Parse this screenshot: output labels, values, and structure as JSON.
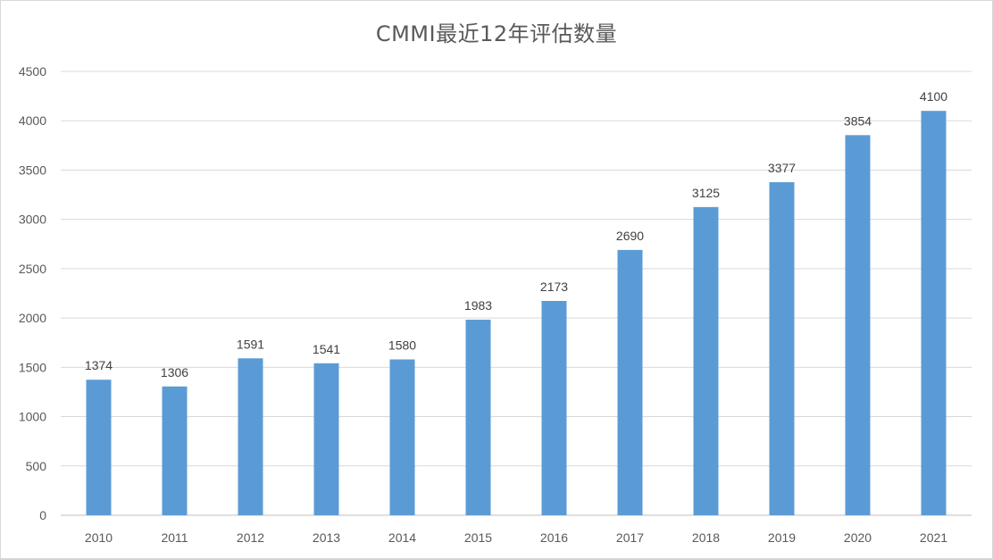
{
  "chart_data": {
    "type": "bar",
    "title": "CMMI最近12年评估数量",
    "xlabel": "",
    "ylabel": "",
    "categories": [
      "2010",
      "2011",
      "2012",
      "2013",
      "2014",
      "2015",
      "2016",
      "2017",
      "2018",
      "2019",
      "2020",
      "2021"
    ],
    "values": [
      1374,
      1306,
      1591,
      1541,
      1580,
      1983,
      2173,
      2690,
      3125,
      3377,
      3854,
      4100
    ],
    "ylim": [
      0,
      4500
    ],
    "yticks": [
      0,
      500,
      1000,
      1500,
      2000,
      2500,
      3000,
      3500,
      4000,
      4500
    ],
    "grid": true,
    "legend": "none",
    "data_labels": true,
    "colors": {
      "bar": "#5b9bd5",
      "grid": "#d9d9d9",
      "text": "#595959"
    }
  }
}
